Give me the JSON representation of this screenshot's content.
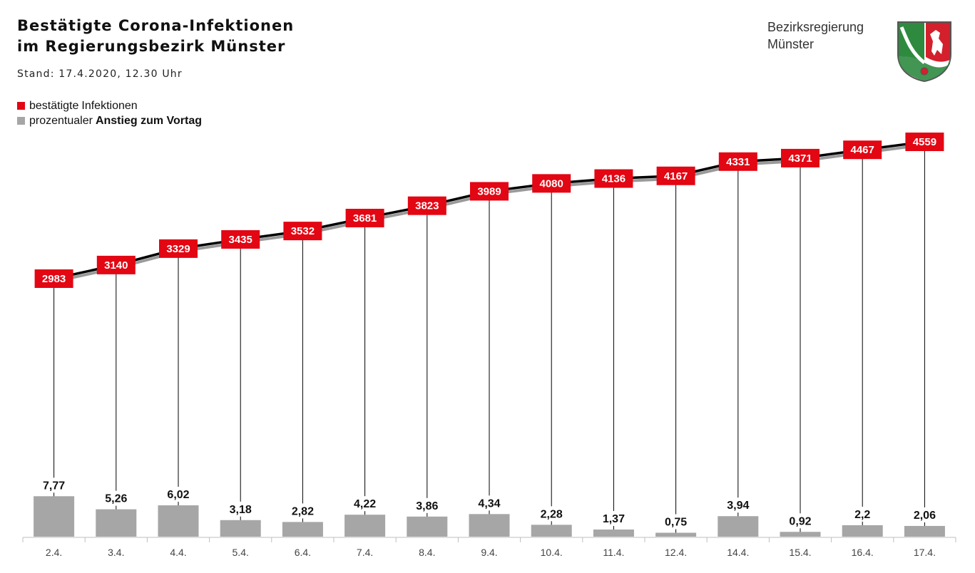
{
  "header": {
    "title_line1": "Bestätigte Corona-Infektionen",
    "title_line2": "im Regierungsbezirk Münster",
    "subtitle": "Stand: 17.4.2020, 12.30 Uhr"
  },
  "legend": {
    "items": [
      {
        "label_plain": "bestätigte ",
        "label_bold": "Infektionen",
        "color": "#e30613"
      },
      {
        "label_plain": "prozentualer ",
        "label_bold": "Anstieg zum Vortag",
        "color": "#a6a6a6"
      }
    ]
  },
  "branding": {
    "line1": "Bezirksregierung",
    "line2": "Münster",
    "crest_icon": "nrw-coat-of-arms-icon"
  },
  "colors": {
    "accent_red": "#e30613",
    "bar_gray": "#a6a6a6",
    "line": "#000000"
  },
  "chart_data": {
    "type": "bar",
    "categories": [
      "2.4.",
      "3.4.",
      "4.4.",
      "5.4.",
      "6.4.",
      "7.4.",
      "8.4.",
      "9.4.",
      "10.4.",
      "11.4.",
      "12.4.",
      "14.4.",
      "15.4.",
      "16.4.",
      "17.4."
    ],
    "series": [
      {
        "name": "bestätigte Infektionen",
        "type": "line",
        "values": [
          2983,
          3140,
          3329,
          3435,
          3532,
          3681,
          3823,
          3989,
          4080,
          4136,
          4167,
          4331,
          4371,
          4467,
          4559
        ]
      },
      {
        "name": "prozentualer Anstieg zum Vortag",
        "type": "bar",
        "values": [
          7.77,
          5.26,
          6.02,
          3.18,
          2.82,
          4.22,
          3.86,
          4.34,
          2.28,
          1.37,
          0.75,
          3.94,
          0.92,
          2.2,
          2.06
        ],
        "labels": [
          "7,77",
          "5,26",
          "6,02",
          "3,18",
          "2,82",
          "4,22",
          "3,86",
          "4,34",
          "2,28",
          "1,37",
          "0,75",
          "3,94",
          "0,92",
          "2,2",
          "2,06"
        ]
      }
    ],
    "title": "Bestätigte Corona-Infektionen im Regierungsbezirk Münster",
    "xlabel": "",
    "ylabel": "",
    "grid": false,
    "legend_position": "top-left"
  }
}
